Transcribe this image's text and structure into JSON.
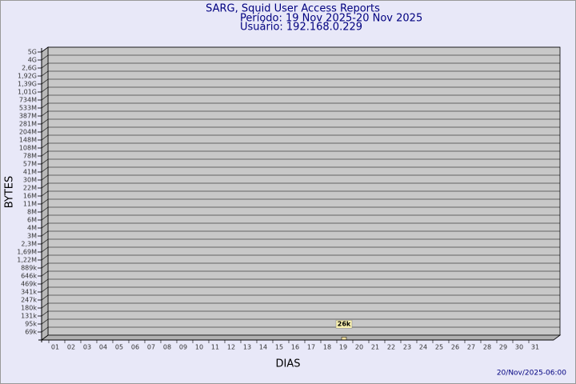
{
  "chart_data": {
    "type": "bar",
    "title": "SARG, Squid User Access Reports",
    "subtitle": [
      "Período: 19 Nov 2025-20 Nov 2025",
      "Usuário: 192.168.0.229"
    ],
    "ylabel": "BYTES",
    "xlabel": "DIAS",
    "footer": "20/Nov/2025-06:00",
    "categories": [
      "01",
      "02",
      "03",
      "04",
      "05",
      "06",
      "07",
      "08",
      "09",
      "10",
      "11",
      "12",
      "13",
      "14",
      "15",
      "16",
      "17",
      "18",
      "19",
      "20",
      "21",
      "22",
      "23",
      "24",
      "25",
      "26",
      "27",
      "28",
      "29",
      "30",
      "31"
    ],
    "values": [
      null,
      null,
      null,
      null,
      null,
      null,
      null,
      null,
      null,
      null,
      null,
      null,
      null,
      null,
      null,
      null,
      null,
      null,
      26000,
      null,
      null,
      null,
      null,
      null,
      null,
      null,
      null,
      null,
      null,
      null,
      null
    ],
    "value_labels": [
      null,
      null,
      null,
      null,
      null,
      null,
      null,
      null,
      null,
      null,
      null,
      null,
      null,
      null,
      null,
      null,
      null,
      null,
      "26k",
      null,
      null,
      null,
      null,
      null,
      null,
      null,
      null,
      null,
      null,
      null,
      null
    ],
    "color": "#f0e0a0",
    "ylim": [
      0,
      5000000000
    ],
    "yticks": [
      {
        "value": 69000,
        "label": "69k"
      },
      {
        "value": 95000,
        "label": "95k"
      },
      {
        "value": 131000,
        "label": "131k"
      },
      {
        "value": 180000,
        "label": "180k"
      },
      {
        "value": 247000,
        "label": "247k"
      },
      {
        "value": 341000,
        "label": "341k"
      },
      {
        "value": 469000,
        "label": "469k"
      },
      {
        "value": 646000,
        "label": "646k"
      },
      {
        "value": 889000,
        "label": "889k"
      },
      {
        "value": 1220000,
        "label": "1,22M"
      },
      {
        "value": 1690000,
        "label": "1,69M"
      },
      {
        "value": 2300000,
        "label": "2,3M"
      },
      {
        "value": 3000000,
        "label": "3M"
      },
      {
        "value": 4000000,
        "label": "4M"
      },
      {
        "value": 6000000,
        "label": "6M"
      },
      {
        "value": 8000000,
        "label": "8M"
      },
      {
        "value": 11000000,
        "label": "11M"
      },
      {
        "value": 16000000,
        "label": "16M"
      },
      {
        "value": 22000000,
        "label": "22M"
      },
      {
        "value": 30000000,
        "label": "30M"
      },
      {
        "value": 41000000,
        "label": "41M"
      },
      {
        "value": 57000000,
        "label": "57M"
      },
      {
        "value": 78000000,
        "label": "78M"
      },
      {
        "value": 108000000,
        "label": "108M"
      },
      {
        "value": 148000000,
        "label": "148M"
      },
      {
        "value": 204000000,
        "label": "204M"
      },
      {
        "value": 281000000,
        "label": "281M"
      },
      {
        "value": 387000000,
        "label": "387M"
      },
      {
        "value": 533000000,
        "label": "533M"
      },
      {
        "value": 734000000,
        "label": "734M"
      },
      {
        "value": 1010000000,
        "label": "1,01G"
      },
      {
        "value": 1390000000,
        "label": "1,39G"
      },
      {
        "value": 1920000000,
        "label": "1,92G"
      },
      {
        "value": 2600000000,
        "label": "2,6G"
      },
      {
        "value": 4000000000,
        "label": "4G"
      },
      {
        "value": 5000000000,
        "label": "5G"
      }
    ],
    "grid": true
  }
}
